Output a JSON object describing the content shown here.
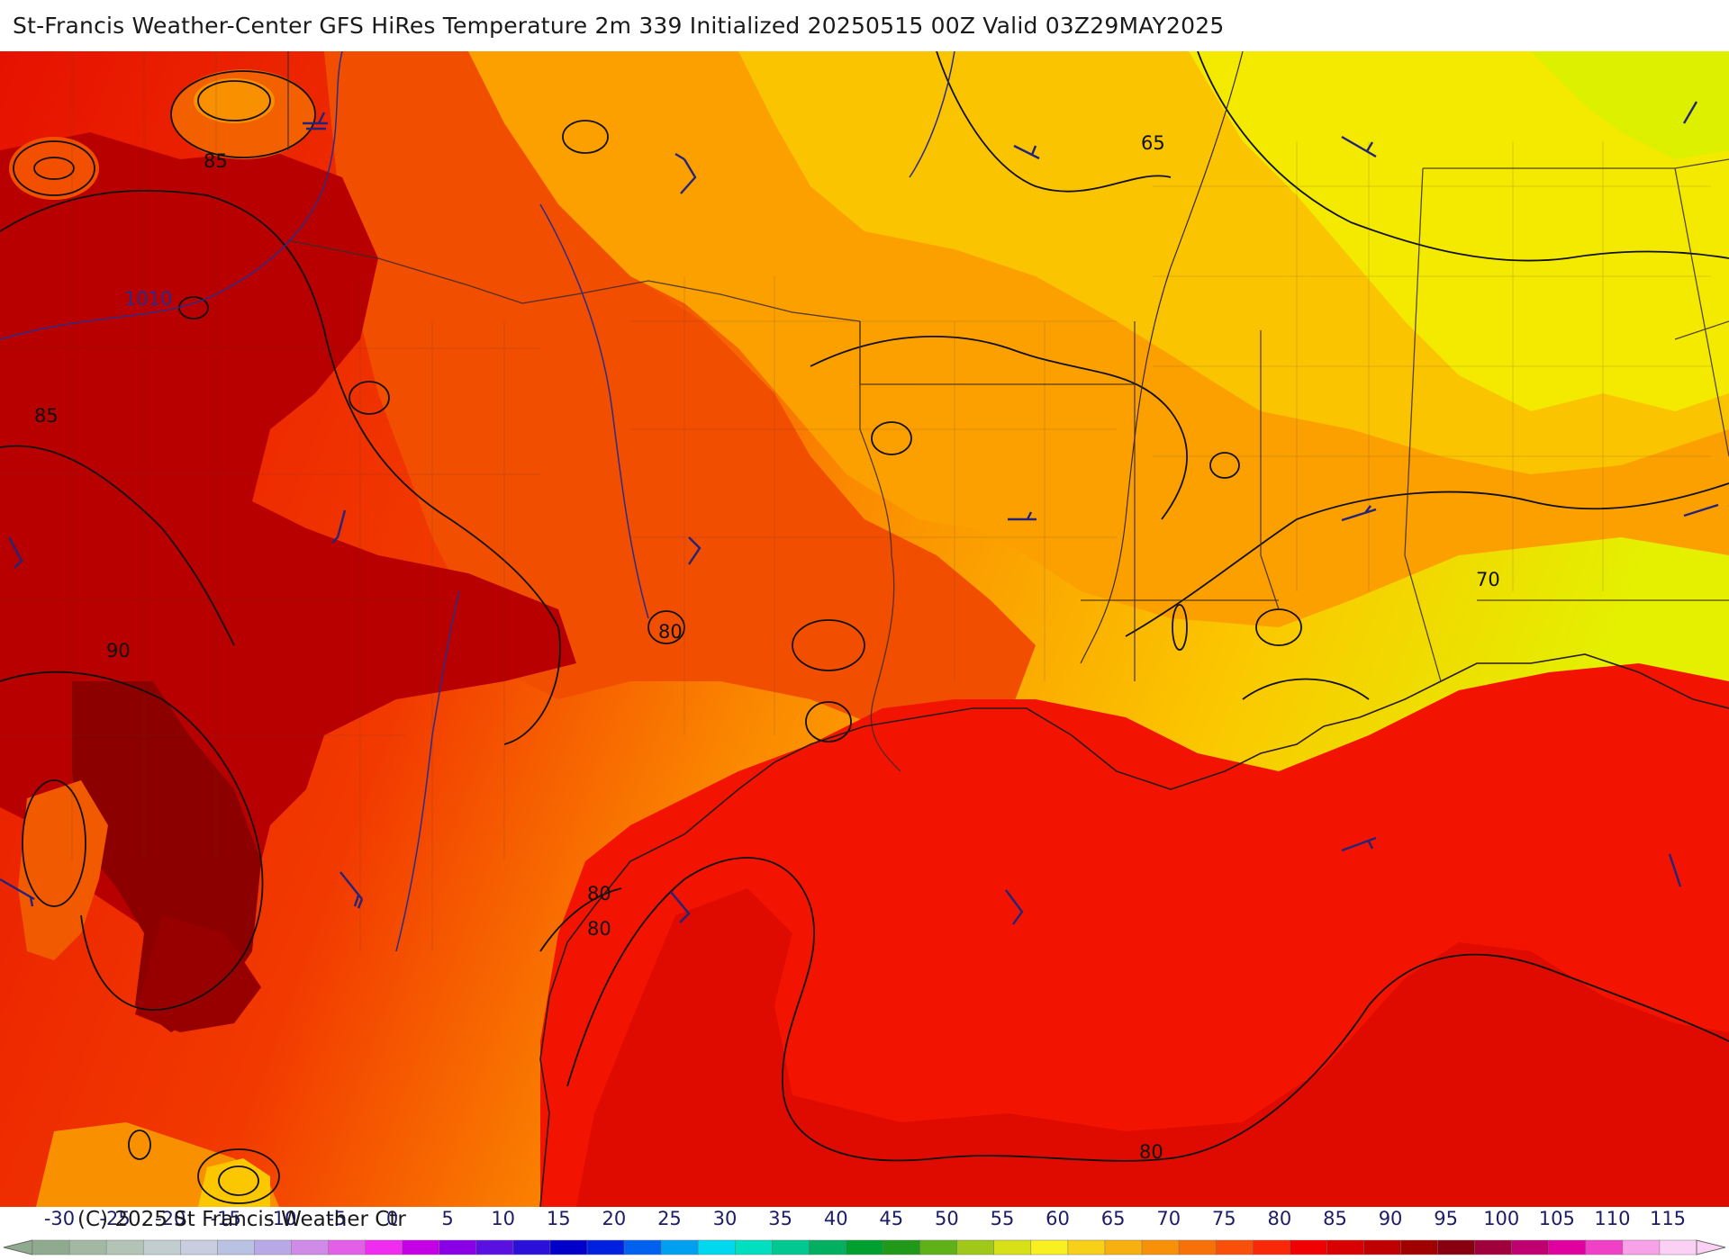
{
  "title": "St-Francis Weather-Center GFS HiRes Temperature 2m  339 Initialized 20250515 00Z Valid 03Z29MAY2025",
  "copyright": "(C) 2025 St Francis Weather Ctr",
  "map": {
    "contour_labels": [
      "85",
      "85",
      "90",
      "80",
      "80",
      "80",
      "80",
      "65",
      "70"
    ],
    "pressure_label": "1010",
    "wind_barb_icon": "wind-barb-icon"
  },
  "colorbar": {
    "ticks": [
      "-30",
      "-25",
      "-20",
      "-15",
      "-10",
      "-5",
      "0",
      "5",
      "10",
      "15",
      "20",
      "25",
      "30",
      "35",
      "40",
      "45",
      "50",
      "55",
      "60",
      "65",
      "70",
      "75",
      "80",
      "85",
      "90",
      "95",
      "100",
      "105",
      "110",
      "115"
    ],
    "colors": [
      "#8faa8f",
      "#a3b8a3",
      "#b3c4b6",
      "#c2cdd0",
      "#c8cde0",
      "#b9c2e3",
      "#b9a8e6",
      "#d08ae8",
      "#e35fe8",
      "#f02cf0",
      "#c600e6",
      "#8a00e6",
      "#5a10e0",
      "#2a10d8",
      "#0000c8",
      "#0020e0",
      "#0060f0",
      "#00a0f0",
      "#00d8f0",
      "#00e0c0",
      "#00c890",
      "#00b060",
      "#00a030",
      "#209818",
      "#60b018",
      "#a0c818",
      "#d8e018",
      "#f8f020",
      "#f8d018",
      "#f8b010",
      "#f89008",
      "#f87008",
      "#f85008",
      "#f82808",
      "#f00000",
      "#d80000",
      "#c00000",
      "#a00000",
      "#880010",
      "#a0003c",
      "#c00070",
      "#e000a0",
      "#f040c8",
      "#f8a0e8",
      "#fcd0f4"
    ]
  },
  "palette": {
    "yellow": "#f2f000",
    "orange": "#fba400",
    "red_orange": "#f44b00",
    "red": "#f21a00",
    "dark_red": "#c00000",
    "contour": "#111111",
    "pressure": "#2b2b8a"
  }
}
